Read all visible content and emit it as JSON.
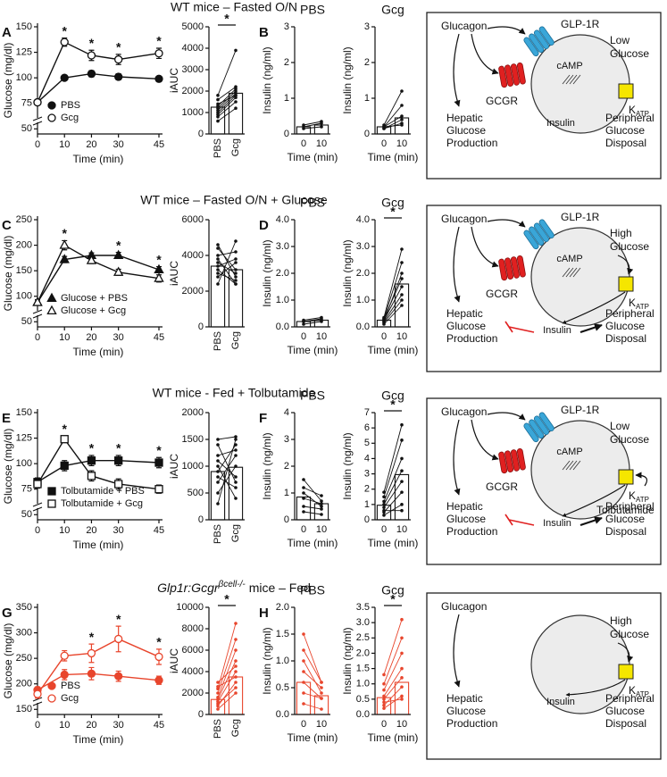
{
  "rows": [
    {
      "title": "WT mice – Fasted O/N"
    },
    {
      "title": "WT mice – Fasted O/N + Glucose"
    },
    {
      "title": "WT mice - Fed + Tolbutamide"
    },
    {
      "title": "Glp1r:Gcgr",
      "title_sup": "βcell-/-",
      "title_rest": "mice – Fed"
    }
  ],
  "chart_data": [
    {
      "type": "line",
      "panel": "A",
      "x": [
        0,
        10,
        20,
        30,
        45
      ],
      "xlim": [
        0,
        45
      ],
      "xticks": [
        0,
        10,
        20,
        30,
        45
      ],
      "ylim": [
        45,
        150
      ],
      "yticks": [
        50,
        75,
        100,
        125,
        150
      ],
      "x_label": "Time (min)",
      "y_label": "Glucose (mg/dl)",
      "series": [
        {
          "name": "PBS",
          "color": "#111111",
          "marker": "circle",
          "fill": "filled",
          "values": [
            76,
            100,
            104,
            101,
            99
          ],
          "errors": [
            2,
            2,
            3,
            3,
            2
          ]
        },
        {
          "name": "Gcg",
          "color": "#111111",
          "marker": "circle",
          "fill": "open",
          "values": [
            76,
            135,
            122,
            118,
            124
          ],
          "errors": [
            2,
            4,
            5,
            5,
            5
          ]
        }
      ],
      "stars": [
        10,
        20,
        30,
        45
      ],
      "star_label": "*"
    },
    {
      "type": "paired_bar",
      "categories": [
        "PBS",
        "Gcg"
      ],
      "values": [
        1250,
        1900
      ],
      "pairs": [
        [
          600,
          1200
        ],
        [
          800,
          1500
        ],
        [
          900,
          1700
        ],
        [
          1000,
          1800
        ],
        [
          1100,
          1900
        ],
        [
          1200,
          2000
        ],
        [
          1300,
          2100
        ],
        [
          1400,
          1800
        ],
        [
          1600,
          2200
        ],
        [
          1800,
          3900
        ]
      ],
      "ylim": [
        0,
        5000
      ],
      "yticks": [
        0,
        1000,
        2000,
        3000,
        4000,
        5000
      ],
      "y_label": "iAUC",
      "star_label": "*",
      "color": "#111111"
    },
    {
      "type": "paired_bar",
      "panel": "B",
      "title": "PBS",
      "categories": [
        "0",
        "10"
      ],
      "values": [
        0.2,
        0.25
      ],
      "pairs": [
        [
          0.15,
          0.2
        ],
        [
          0.2,
          0.3
        ],
        [
          0.25,
          0.35
        ]
      ],
      "ylim": [
        0,
        3
      ],
      "yticks": [
        0,
        1,
        2,
        3
      ],
      "y_label": "Insulin (ng/ml)",
      "x_label": "Time (min)",
      "color": "#111111"
    },
    {
      "type": "paired_bar",
      "title": "Gcg",
      "categories": [
        "0",
        "10"
      ],
      "values": [
        0.2,
        0.45
      ],
      "pairs": [
        [
          0.15,
          0.3
        ],
        [
          0.2,
          0.5
        ],
        [
          0.2,
          0.8
        ],
        [
          0.25,
          1.2
        ],
        [
          0.2,
          0.25
        ],
        [
          0.15,
          0.4
        ]
      ],
      "ylim": [
        0,
        3
      ],
      "yticks": [
        0,
        1,
        2,
        3
      ],
      "y_label": "Insulin (ng/ml)",
      "x_label": "Time (min)",
      "color": "#111111"
    },
    {
      "type": "line",
      "panel": "C",
      "x": [
        0,
        10,
        20,
        30,
        45
      ],
      "xlim": [
        0,
        45
      ],
      "xticks": [
        0,
        10,
        20,
        30,
        45
      ],
      "ylim": [
        40,
        250
      ],
      "yticks": [
        50,
        100,
        150,
        200,
        250
      ],
      "x_label": "Time (min)",
      "y_label": "Glucose (mg/dl)",
      "series": [
        {
          "name": "Glucose + PBS",
          "color": "#111111",
          "marker": "triangle",
          "fill": "filled",
          "values": [
            88,
            172,
            180,
            180,
            152
          ],
          "errors": [
            5,
            6,
            5,
            6,
            6
          ]
        },
        {
          "name": "Glucose + Gcg",
          "color": "#111111",
          "marker": "triangle",
          "fill": "open",
          "values": [
            88,
            200,
            170,
            147,
            135
          ],
          "errors": [
            5,
            9,
            6,
            6,
            7
          ]
        }
      ],
      "stars": [
        10,
        30,
        45
      ],
      "star_label": "*"
    },
    {
      "type": "paired_bar",
      "categories": [
        "PBS",
        "Gcg"
      ],
      "values": [
        3400,
        3200
      ],
      "pairs": [
        [
          2400,
          4800
        ],
        [
          2800,
          3600
        ],
        [
          3000,
          2600
        ],
        [
          3200,
          2400
        ],
        [
          3400,
          3800
        ],
        [
          3600,
          3000
        ],
        [
          3800,
          2400
        ],
        [
          4000,
          4200
        ],
        [
          4400,
          3200
        ],
        [
          4600,
          2800
        ]
      ],
      "ylim": [
        0,
        6000
      ],
      "yticks": [
        0,
        2000,
        4000,
        6000
      ],
      "y_label": "iAUC",
      "color": "#111111"
    },
    {
      "type": "paired_bar",
      "panel": "D",
      "title": "PBS",
      "categories": [
        "0",
        "10"
      ],
      "values": [
        0.2,
        0.25
      ],
      "pairs": [
        [
          0.1,
          0.2
        ],
        [
          0.2,
          0.3
        ],
        [
          0.25,
          0.35
        ],
        [
          0.2,
          0.25
        ]
      ],
      "ylim": [
        0,
        4
      ],
      "yticks": [
        {
          "value": 0,
          "label": "0.0"
        },
        {
          "value": 1,
          "label": "1.0"
        },
        {
          "value": 2,
          "label": "2.0"
        },
        {
          "value": 3,
          "label": "3.0"
        },
        {
          "value": 4,
          "label": "4.0"
        }
      ],
      "y_label": "Insulin (ng/ml)",
      "x_label": "Time (min)",
      "color": "#111111"
    },
    {
      "type": "paired_bar",
      "title": "Gcg",
      "categories": [
        "0",
        "10"
      ],
      "values": [
        0.25,
        1.6
      ],
      "pairs": [
        [
          0.1,
          0.8
        ],
        [
          0.2,
          1.2
        ],
        [
          0.25,
          1.5
        ],
        [
          0.3,
          1.8
        ],
        [
          0.2,
          2.0
        ],
        [
          0.3,
          2.4
        ],
        [
          0.35,
          2.9
        ],
        [
          0.15,
          1.0
        ]
      ],
      "ylim": [
        0,
        4
      ],
      "yticks": [
        {
          "value": 0,
          "label": "0.0"
        },
        {
          "value": 1,
          "label": "1.0"
        },
        {
          "value": 2,
          "label": "2.0"
        },
        {
          "value": 3,
          "label": "3.0"
        },
        {
          "value": 4,
          "label": "4.0"
        }
      ],
      "y_label": "Insulin (ng/ml)",
      "x_label": "Time (min)",
      "star_label": "*",
      "color": "#111111"
    },
    {
      "type": "line",
      "panel": "E",
      "x": [
        0,
        10,
        20,
        30,
        45
      ],
      "xlim": [
        0,
        45
      ],
      "xticks": [
        0,
        10,
        20,
        30,
        45
      ],
      "ylim": [
        45,
        150
      ],
      "yticks": [
        50,
        75,
        100,
        125,
        150
      ],
      "x_label": "Time (min)",
      "y_label": "Glucose (mg/dl)",
      "series": [
        {
          "name": "Tolbutamide + PBS",
          "color": "#111111",
          "marker": "square",
          "fill": "filled",
          "values": [
            82,
            98,
            103,
            103,
            101
          ],
          "errors": [
            4,
            5,
            5,
            5,
            5
          ]
        },
        {
          "name": "Tolbutamide + Gcg",
          "color": "#111111",
          "marker": "square",
          "fill": "open",
          "values": [
            80,
            124,
            88,
            80,
            75
          ],
          "errors": [
            4,
            3,
            5,
            5,
            4
          ]
        }
      ],
      "stars": [
        10,
        20,
        30,
        45
      ],
      "star_label": "*"
    },
    {
      "type": "paired_bar",
      "categories": [
        "PBS",
        "Gcg"
      ],
      "values": [
        900,
        980
      ],
      "pairs": [
        [
          300,
          1500
        ],
        [
          500,
          1000
        ],
        [
          700,
          1200
        ],
        [
          800,
          600
        ],
        [
          900,
          1400
        ],
        [
          1000,
          400
        ],
        [
          1100,
          800
        ],
        [
          1200,
          1300
        ],
        [
          1400,
          700
        ],
        [
          1500,
          1550
        ]
      ],
      "ylim": [
        0,
        2000
      ],
      "yticks": [
        0,
        500,
        1000,
        1500,
        2000
      ],
      "y_label": "iAUC",
      "color": "#111111"
    },
    {
      "type": "paired_bar",
      "panel": "F",
      "title": "PBS",
      "categories": [
        "0",
        "10"
      ],
      "values": [
        0.85,
        0.6
      ],
      "pairs": [
        [
          0.3,
          0.2
        ],
        [
          0.5,
          0.4
        ],
        [
          0.8,
          0.6
        ],
        [
          1.0,
          0.5
        ],
        [
          1.2,
          0.9
        ],
        [
          1.5,
          0.7
        ]
      ],
      "ylim": [
        0,
        4
      ],
      "yticks": [
        0,
        1,
        2,
        3,
        4
      ],
      "y_label": "Insulin (ng/ml)",
      "x_label": "Time (min)",
      "color": "#111111"
    },
    {
      "type": "paired_bar",
      "title": "Gcg",
      "categories": [
        "0",
        "10"
      ],
      "values": [
        0.95,
        2.95
      ],
      "pairs": [
        [
          0.3,
          1.0
        ],
        [
          0.5,
          1.8
        ],
        [
          0.8,
          2.5
        ],
        [
          1.0,
          3.2
        ],
        [
          1.2,
          4.0
        ],
        [
          1.5,
          5.2
        ],
        [
          1.8,
          6.2
        ],
        [
          0.6,
          0.6
        ]
      ],
      "ylim": [
        0,
        7
      ],
      "yticks": [
        0,
        1,
        2,
        3,
        4,
        5,
        6,
        7
      ],
      "y_label": "Insulin (ng/ml)",
      "x_label": "Time (min)",
      "star_label": "*",
      "color": "#111111"
    },
    {
      "type": "line",
      "panel": "G",
      "x": [
        0,
        10,
        20,
        30,
        45
      ],
      "xlim": [
        0,
        45
      ],
      "xticks": [
        0,
        10,
        20,
        30,
        45
      ],
      "ylim": [
        140,
        350
      ],
      "yticks": [
        150,
        200,
        250,
        300,
        350
      ],
      "x_label": "Time (min)",
      "y_label": "Glucose (mg/dl)",
      "series": [
        {
          "name": "PBS",
          "color": "#e8452c",
          "marker": "circle",
          "fill": "filled",
          "values": [
            188,
            218,
            220,
            215,
            207
          ],
          "errors": [
            6,
            10,
            12,
            10,
            8
          ]
        },
        {
          "name": "Gcg",
          "color": "#e8452c",
          "marker": "circle",
          "fill": "open",
          "values": [
            180,
            255,
            260,
            288,
            253
          ],
          "errors": [
            8,
            10,
            18,
            25,
            15
          ]
        }
      ],
      "stars": [
        20,
        30,
        45
      ],
      "star_label": "*"
    },
    {
      "type": "paired_bar",
      "categories": [
        "PBS",
        "Gcg"
      ],
      "values": [
        1400,
        3500
      ],
      "pairs": [
        [
          500,
          2000
        ],
        [
          800,
          3000
        ],
        [
          1000,
          2500
        ],
        [
          1200,
          4000
        ],
        [
          1400,
          5000
        ],
        [
          1600,
          6000
        ],
        [
          2000,
          7000
        ],
        [
          2400,
          8500
        ],
        [
          2600,
          3500
        ],
        [
          3000,
          4500
        ]
      ],
      "ylim": [
        0,
        10000
      ],
      "yticks": [
        0,
        2000,
        4000,
        6000,
        8000,
        10000
      ],
      "y_label": "iAUC",
      "star_label": "*",
      "color": "#e8452c"
    },
    {
      "type": "paired_bar",
      "panel": "H",
      "title": "PBS",
      "categories": [
        "0",
        "10"
      ],
      "values": [
        0.6,
        0.35
      ],
      "pairs": [
        [
          0.2,
          0.1
        ],
        [
          0.4,
          0.3
        ],
        [
          0.6,
          0.3
        ],
        [
          0.8,
          0.5
        ],
        [
          1.0,
          0.4
        ],
        [
          1.2,
          0.6
        ],
        [
          1.5,
          0.6
        ]
      ],
      "ylim": [
        0,
        2
      ],
      "yticks": [
        {
          "value": 0,
          "label": "0.0"
        },
        0.5,
        {
          "value": 1,
          "label": "1.0"
        },
        1.5,
        {
          "value": 2,
          "label": "2.0"
        }
      ],
      "y_label": "Insulin (ng/ml)",
      "x_label": "Time (min)",
      "color": "#e8452c"
    },
    {
      "type": "paired_bar",
      "title": "Gcg",
      "categories": [
        "0",
        "10"
      ],
      "values": [
        0.55,
        1.05
      ],
      "pairs": [
        [
          0.2,
          0.6
        ],
        [
          0.3,
          0.9
        ],
        [
          0.5,
          1.2
        ],
        [
          0.6,
          1.5
        ],
        [
          0.8,
          2.0
        ],
        [
          1.0,
          2.5
        ],
        [
          1.3,
          3.1
        ],
        [
          0.4,
          0.5
        ]
      ],
      "ylim": [
        0,
        3.5
      ],
      "yticks": [
        {
          "value": 0,
          "label": "0.0"
        },
        0.5,
        {
          "value": 1,
          "label": "1.0"
        },
        1.5,
        {
          "value": 2,
          "label": "2.0"
        },
        2.5,
        {
          "value": 3,
          "label": "3.0"
        },
        3.5
      ],
      "y_label": "Insulin (ng/ml)",
      "x_label": "Time (min)",
      "star_label": "*",
      "color": "#e8452c"
    }
  ],
  "diagrams": [
    {
      "glucagon": "Glucagon",
      "glp1r": "GLP-1R",
      "gcgr": "GCGR",
      "camp": "cAMP",
      "glucose": [
        "Low",
        "Glucose"
      ],
      "katp": "K",
      "katp_sub": "ATP",
      "insulin": "Insulin",
      "hepatic": [
        "Hepatic",
        "Glucose",
        "Production"
      ],
      "peripheral": [
        "Peripheral",
        "Glucose",
        "Disposal"
      ]
    },
    {
      "glucagon": "Glucagon",
      "glp1r": "GLP-1R",
      "gcgr": "GCGR",
      "camp": "cAMP",
      "glucose": [
        "High",
        "Glucose"
      ],
      "katp": "K",
      "katp_sub": "ATP",
      "insulin": "Insulin",
      "hepatic": [
        "Hepatic",
        "Glucose",
        "Production"
      ],
      "peripheral": [
        "Peripheral",
        "Glucose",
        "Disposal"
      ]
    },
    {
      "glucagon": "Glucagon",
      "glp1r": "GLP-1R",
      "gcgr": "GCGR",
      "camp": "cAMP",
      "glucose": [
        "Low",
        "Glucose"
      ],
      "katp": "K",
      "katp_sub": "ATP",
      "tolbutamide": "Tolbutamide",
      "insulin": "Insulin",
      "hepatic": [
        "Hepatic",
        "Glucose",
        "Production"
      ],
      "peripheral": [
        "Peripheral",
        "Glucose",
        "Disposal"
      ]
    },
    {
      "glucagon": "Glucagon",
      "glucose": [
        "High",
        "Glucose"
      ],
      "katp": "K",
      "katp_sub": "ATP",
      "insulin": "Insulin",
      "hepatic": [
        "Hepatic",
        "Glucose",
        "Production"
      ],
      "peripheral": [
        "Peripheral",
        "Glucose",
        "Disposal"
      ]
    }
  ]
}
